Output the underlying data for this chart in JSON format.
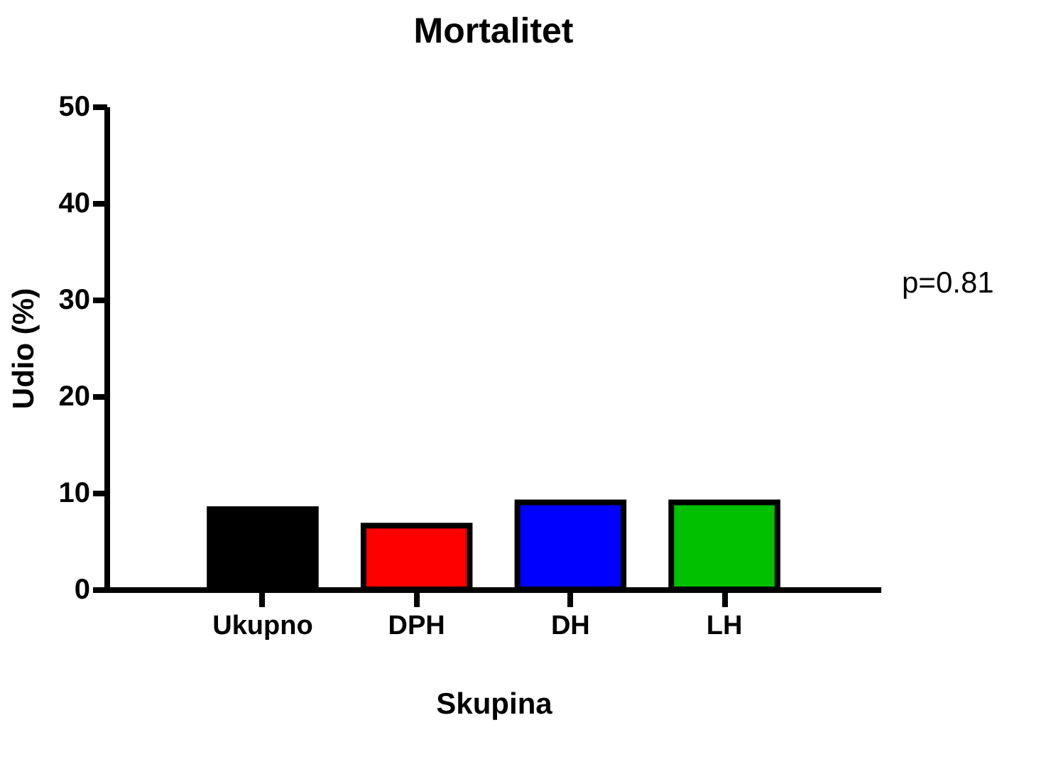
{
  "chart_data": {
    "type": "bar",
    "title": "Mortalitet",
    "xlabel": "Skupina",
    "ylabel": "Udio (%)",
    "categories": [
      "Ukupno",
      "DPH",
      "DH",
      "LH"
    ],
    "values": [
      8.3,
      6.6,
      9.0,
      9.0
    ],
    "colors": [
      "#000000",
      "#ff0000",
      "#0000ff",
      "#00c000"
    ],
    "ylim": [
      0,
      50
    ],
    "yticks": [
      0,
      10,
      20,
      30,
      40,
      50
    ],
    "grid": false,
    "annotations": [
      "p=0.81"
    ]
  }
}
